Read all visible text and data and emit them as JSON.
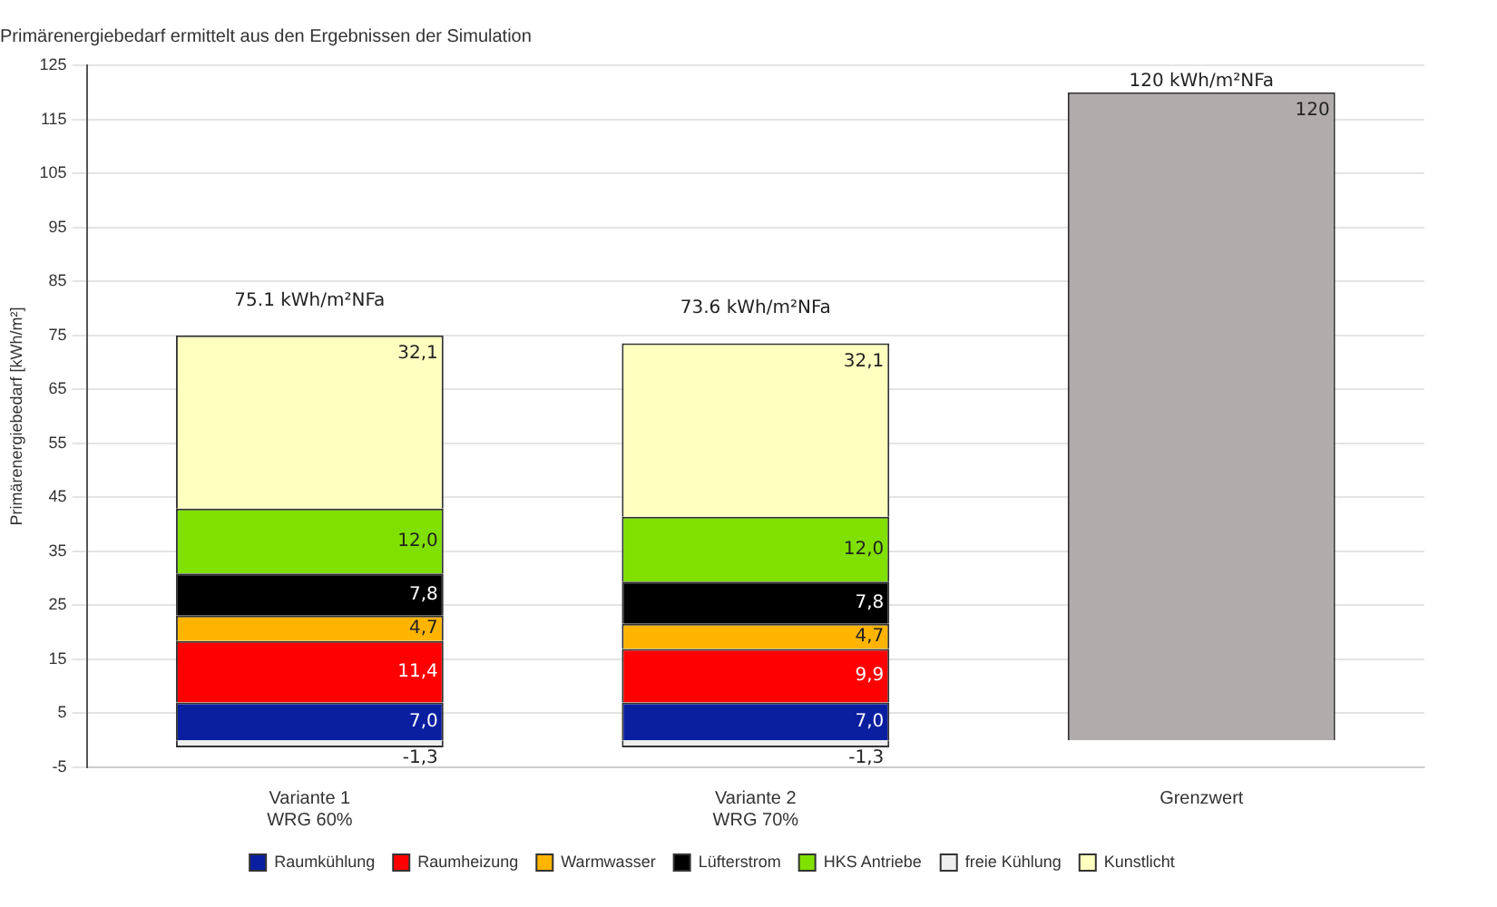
{
  "chart_data": {
    "type": "bar",
    "stacked": true,
    "title": "Primärenergiebedarf ermittelt aus den Ergebnissen der Simulation",
    "ylabel": "Primärenergiebedarf [kWh/m²]",
    "categories": [
      "Variante 1\nWRG 60%",
      "Variante 2\nWRG 70%",
      "Grenzwert"
    ],
    "series": [
      {
        "name": "Raumkühlung",
        "color": "#0a1fa0",
        "values": [
          7.0,
          7.0,
          null
        ],
        "value_labels": [
          "7,0",
          "7,0",
          null
        ]
      },
      {
        "name": "Raumheizung",
        "color": "#ff0000",
        "values": [
          11.4,
          9.9,
          null
        ],
        "value_labels": [
          "11,4",
          "9,9",
          null
        ]
      },
      {
        "name": "Warmwasser",
        "color": "#ffb400",
        "values": [
          4.7,
          4.7,
          null
        ],
        "value_labels": [
          "4,7",
          "4,7",
          null
        ]
      },
      {
        "name": "Lüfterstrom",
        "color": "#000000",
        "values": [
          7.8,
          7.8,
          null
        ],
        "value_labels": [
          "7,8",
          "7,8",
          null
        ]
      },
      {
        "name": "HKS Antriebe",
        "color": "#80e000",
        "values": [
          12.0,
          12.0,
          null
        ],
        "value_labels": [
          "12,0",
          "12,0",
          null
        ]
      },
      {
        "name": "freie Kühlung",
        "color": "#eeeeee",
        "values": [
          -1.3,
          -1.3,
          null
        ],
        "value_labels": [
          "-1,3",
          "-1,3",
          null
        ]
      },
      {
        "name": "Kunstlicht",
        "color": "#ffffc0",
        "values": [
          32.1,
          32.1,
          null
        ],
        "value_labels": [
          "32,1",
          "32,1",
          null
        ]
      },
      {
        "color": "#b0acac",
        "values": [
          null,
          null,
          120
        ],
        "value_labels": [
          null,
          null,
          "120"
        ]
      }
    ],
    "annotations": [
      {
        "text": "75.1 kWh/m²NFa",
        "x": "Variante 1\nWRG 60%",
        "y": 75
      },
      {
        "text": "73.6 kWh/m²NFa",
        "x": "Variante 2\nWRG 70%",
        "y": 73.6
      },
      {
        "text": "120 kWh/m²NFa",
        "x": "Grenzwert",
        "y": 120
      }
    ],
    "ylim": [
      -5,
      125
    ],
    "yticks": [
      -5,
      5,
      15,
      25,
      35,
      45,
      55,
      65,
      75,
      85,
      95,
      105,
      115,
      125
    ],
    "grid": "y",
    "legend": "bottom"
  }
}
